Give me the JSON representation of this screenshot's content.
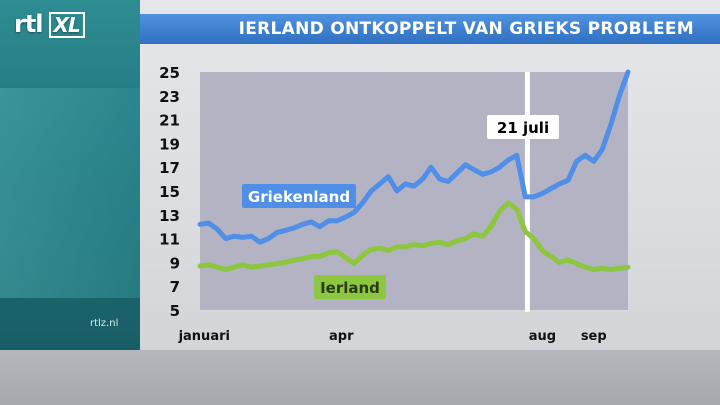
{
  "header": {
    "logo_text": "rtl",
    "logo_badge": "XL",
    "title": "IERLAND ONTKOPPELT VAN GRIEKS PROBLEEM"
  },
  "footer": {
    "watermark": "rtlz.nl"
  },
  "colors": {
    "title_bar": "#3a7fd0",
    "griekenland": "#4f8fe8",
    "ierland": "#8dc63f",
    "plot_bg": "#b3b3c3"
  },
  "chart_data": {
    "type": "line",
    "title": "IERLAND ONTKOPPELT VAN GRIEKS PROBLEEM",
    "xlabel": "",
    "ylabel": "",
    "ylim": [
      5,
      25
    ],
    "yticks": [
      5,
      7,
      9,
      11,
      13,
      15,
      17,
      19,
      21,
      23,
      25
    ],
    "xticks": [
      "januari",
      "apr",
      "aug",
      "sep"
    ],
    "annotation": "21 juli",
    "x": [
      0,
      2,
      4,
      6,
      8,
      10,
      12,
      14,
      16,
      18,
      20,
      22,
      24,
      26,
      28,
      30,
      32,
      34,
      36,
      38,
      40,
      42,
      44,
      46,
      48,
      50,
      52,
      54,
      56,
      58,
      60,
      62,
      64,
      66,
      68,
      70,
      72,
      74,
      76,
      78,
      80,
      82,
      84,
      86,
      88,
      90,
      92,
      94,
      96,
      98,
      100
    ],
    "series": [
      {
        "name": "Griekenland",
        "values": [
          12.2,
          12.3,
          11.8,
          11.0,
          11.2,
          11.1,
          11.2,
          10.7,
          11.0,
          11.5,
          11.7,
          11.9,
          12.2,
          12.4,
          12.0,
          12.5,
          12.5,
          12.8,
          13.2,
          14.0,
          15.0,
          15.6,
          16.2,
          15.0,
          15.6,
          15.4,
          16.0,
          17.0,
          16.0,
          15.8,
          16.5,
          17.2,
          16.8,
          16.4,
          16.6,
          17.0,
          17.6,
          18.0,
          14.5,
          14.5,
          14.8,
          15.2,
          15.6,
          15.9,
          17.5,
          18.0,
          17.5,
          18.5,
          20.6,
          23.0,
          25.0
        ]
      },
      {
        "name": "Ierland",
        "values": [
          8.7,
          8.8,
          8.6,
          8.4,
          8.6,
          8.8,
          8.6,
          8.7,
          8.8,
          8.9,
          9.0,
          9.2,
          9.3,
          9.5,
          9.5,
          9.8,
          9.9,
          9.4,
          8.9,
          9.6,
          10.1,
          10.2,
          10.0,
          10.3,
          10.3,
          10.5,
          10.4,
          10.6,
          10.7,
          10.5,
          10.8,
          11.0,
          11.4,
          11.2,
          12.0,
          13.3,
          14.0,
          13.5,
          11.6,
          11.0,
          10.0,
          9.5,
          9.0,
          9.2,
          8.9,
          8.6,
          8.4,
          8.5,
          8.4,
          8.5,
          8.6
        ]
      }
    ]
  }
}
